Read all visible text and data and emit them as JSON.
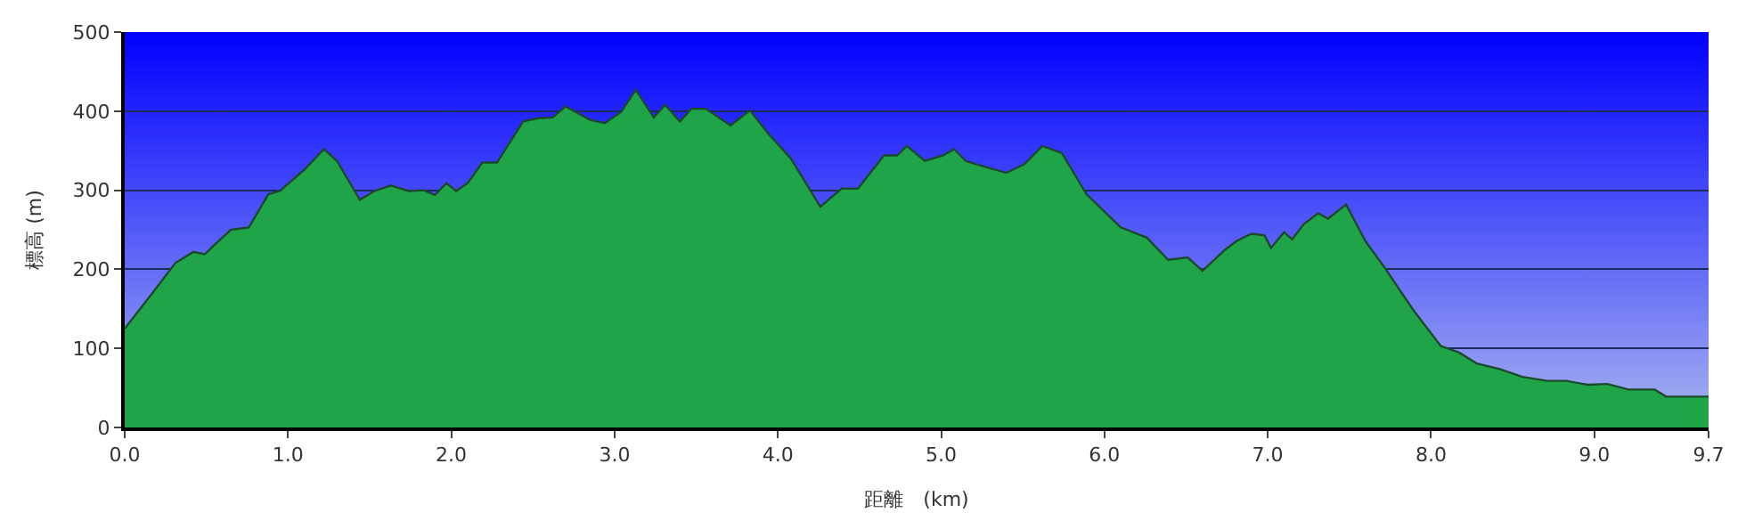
{
  "chart_data": {
    "type": "area",
    "xlabel": "距離　(km)",
    "ylabel": "標高 (m)",
    "x": [
      0,
      0.17,
      0.31,
      0.42,
      0.49,
      0.54,
      0.65,
      0.76,
      0.88,
      0.95,
      1.1,
      1.22,
      1.3,
      1.44,
      1.53,
      1.63,
      1.74,
      1.83,
      1.9,
      1.97,
      2.03,
      2.1,
      2.19,
      2.28,
      2.44,
      2.53,
      2.62,
      2.7,
      2.85,
      2.94,
      3.04,
      3.13,
      3.24,
      3.31,
      3.4,
      3.47,
      3.56,
      3.71,
      3.83,
      3.94,
      4.08,
      4.26,
      4.39,
      4.49,
      4.65,
      4.73,
      4.79,
      4.9,
      5.01,
      5.08,
      5.15,
      5.26,
      5.4,
      5.51,
      5.62,
      5.74,
      5.89,
      6.1,
      6.26,
      6.39,
      6.51,
      6.6,
      6.74,
      6.81,
      6.9,
      6.98,
      7.02,
      7.1,
      7.15,
      7.22,
      7.31,
      7.37,
      7.48,
      7.6,
      7.71,
      7.89,
      8.06,
      8.17,
      8.28,
      8.42,
      8.56,
      8.71,
      8.83,
      8.96,
      9.08,
      9.21,
      9.37,
      9.44,
      9.67,
      9.7
    ],
    "series": [
      {
        "color": "#1fa547",
        "values": [
          125,
          170,
          208,
          222,
          219,
          229,
          250,
          253,
          295,
          299,
          326,
          352,
          337,
          288,
          299,
          306,
          299,
          300,
          294,
          309,
          299,
          309,
          335,
          335,
          387,
          391,
          392,
          406,
          389,
          385,
          399,
          427,
          392,
          408,
          387,
          403,
          403,
          382,
          401,
          372,
          340,
          279,
          302,
          302,
          344,
          344,
          356,
          337,
          344,
          352,
          337,
          330,
          322,
          333,
          356,
          347,
          295,
          253,
          240,
          212,
          215,
          198,
          225,
          236,
          245,
          243,
          227,
          247,
          238,
          257,
          271,
          264,
          282,
          235,
          204,
          149,
          103,
          95,
          81,
          74,
          64,
          59,
          59,
          54,
          55,
          48,
          48,
          39,
          39,
          39
        ]
      }
    ],
    "xlim": [
      0,
      9.7
    ],
    "xticks": [
      {
        "value": 0,
        "label": "0.0"
      },
      {
        "value": 1,
        "label": "1.0"
      },
      {
        "value": 2,
        "label": "2.0"
      },
      {
        "value": 3,
        "label": "3.0"
      },
      {
        "value": 4,
        "label": "4.0"
      },
      {
        "value": 5,
        "label": "5.0"
      },
      {
        "value": 6,
        "label": "6.0"
      },
      {
        "value": 7,
        "label": "7.0"
      },
      {
        "value": 8,
        "label": "8.0"
      },
      {
        "value": 9,
        "label": "9.0"
      },
      {
        "value": 9.7,
        "label": "9.7"
      }
    ],
    "ylim": [
      0,
      500
    ],
    "yticks": [
      0,
      100,
      200,
      300,
      400,
      500
    ],
    "grid": "y"
  }
}
